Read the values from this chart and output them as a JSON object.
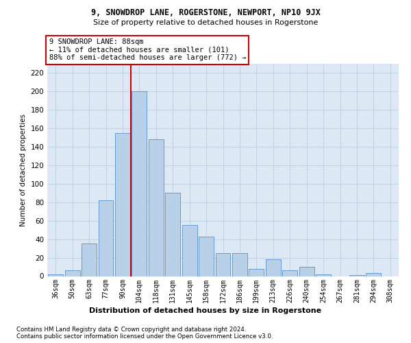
{
  "title1": "9, SNOWDROP LANE, ROGERSTONE, NEWPORT, NP10 9JX",
  "title2": "Size of property relative to detached houses in Rogerstone",
  "xlabel": "Distribution of detached houses by size in Rogerstone",
  "ylabel": "Number of detached properties",
  "categories": [
    "36sqm",
    "50sqm",
    "63sqm",
    "77sqm",
    "90sqm",
    "104sqm",
    "118sqm",
    "131sqm",
    "145sqm",
    "158sqm",
    "172sqm",
    "186sqm",
    "199sqm",
    "213sqm",
    "226sqm",
    "240sqm",
    "254sqm",
    "267sqm",
    "281sqm",
    "294sqm",
    "308sqm"
  ],
  "values": [
    2,
    6,
    35,
    82,
    155,
    200,
    148,
    90,
    55,
    43,
    25,
    25,
    8,
    18,
    6,
    10,
    2,
    0,
    1,
    3,
    0
  ],
  "bar_color": "#b8d0e8",
  "bar_edge_color": "#6699cc",
  "vline_x_idx": 4,
  "vline_color": "#cc0000",
  "annotation_text": "9 SNOWDROP LANE: 88sqm\n← 11% of detached houses are smaller (101)\n88% of semi-detached houses are larger (772) →",
  "annotation_box_color": "#ffffff",
  "annotation_box_edge": "#cc0000",
  "grid_color": "#c0d4e8",
  "bg_color": "#dce8f4",
  "footnote1": "Contains HM Land Registry data © Crown copyright and database right 2024.",
  "footnote2": "Contains public sector information licensed under the Open Government Licence v3.0.",
  "ylim": [
    0,
    230
  ],
  "yticks": [
    0,
    20,
    40,
    60,
    80,
    100,
    120,
    140,
    160,
    180,
    200,
    220
  ]
}
